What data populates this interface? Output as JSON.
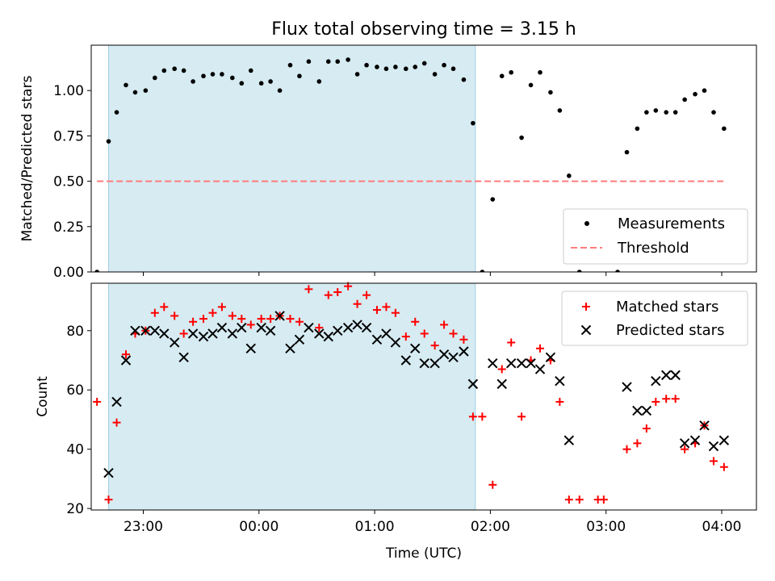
{
  "chart_data": [
    {
      "type": "scatter",
      "title": "Flux total observing time = 3.15 h",
      "xlabel": "",
      "ylabel": "Matched/Predicted stars",
      "xlim": [
        -1.45,
        4.3
      ],
      "ylim": [
        0,
        1.25
      ],
      "yticks": [
        0.0,
        0.25,
        0.5,
        0.75,
        1.0
      ],
      "ytick_labels": [
        "0.00",
        "0.25",
        "0.50",
        "0.75",
        "1.00"
      ],
      "shaded_region": [
        -1.3,
        1.87
      ],
      "threshold": {
        "value": 0.5,
        "x_range": [
          -1.4,
          4.03
        ]
      },
      "legend": {
        "position": "lower-right",
        "entries": [
          "Measurements",
          "Threshold"
        ]
      },
      "series": [
        {
          "name": "Measurements",
          "color": "#000000",
          "points": [
            [
              -1.4,
              0.0
            ],
            [
              -1.3,
              0.72
            ],
            [
              -1.23,
              0.88
            ],
            [
              -1.15,
              1.03
            ],
            [
              -1.07,
              0.99
            ],
            [
              -0.98,
              1.0
            ],
            [
              -0.9,
              1.07
            ],
            [
              -0.82,
              1.11
            ],
            [
              -0.73,
              1.12
            ],
            [
              -0.65,
              1.11
            ],
            [
              -0.57,
              1.05
            ],
            [
              -0.48,
              1.08
            ],
            [
              -0.4,
              1.09
            ],
            [
              -0.32,
              1.09
            ],
            [
              -0.23,
              1.07
            ],
            [
              -0.15,
              1.04
            ],
            [
              -0.07,
              1.11
            ],
            [
              0.02,
              1.04
            ],
            [
              0.1,
              1.05
            ],
            [
              0.18,
              1.0
            ],
            [
              0.27,
              1.14
            ],
            [
              0.35,
              1.08
            ],
            [
              0.43,
              1.16
            ],
            [
              0.52,
              1.05
            ],
            [
              0.6,
              1.16
            ],
            [
              0.68,
              1.16
            ],
            [
              0.77,
              1.17
            ],
            [
              0.85,
              1.09
            ],
            [
              0.93,
              1.14
            ],
            [
              1.02,
              1.13
            ],
            [
              1.1,
              1.12
            ],
            [
              1.18,
              1.13
            ],
            [
              1.27,
              1.12
            ],
            [
              1.35,
              1.13
            ],
            [
              1.43,
              1.15
            ],
            [
              1.52,
              1.09
            ],
            [
              1.6,
              1.14
            ],
            [
              1.68,
              1.12
            ],
            [
              1.77,
              1.06
            ],
            [
              1.85,
              0.82
            ],
            [
              1.93,
              0.0
            ],
            [
              2.02,
              0.4
            ],
            [
              2.1,
              1.08
            ],
            [
              2.18,
              1.1
            ],
            [
              2.27,
              0.74
            ],
            [
              2.35,
              1.03
            ],
            [
              2.43,
              1.1
            ],
            [
              2.52,
              0.99
            ],
            [
              2.6,
              0.89
            ],
            [
              2.68,
              0.53
            ],
            [
              2.77,
              0.0
            ],
            [
              2.85,
              -0.02
            ],
            [
              2.93,
              -0.02
            ],
            [
              3.02,
              -0.02
            ],
            [
              3.1,
              0.0
            ],
            [
              3.18,
              0.66
            ],
            [
              3.27,
              0.79
            ],
            [
              3.35,
              0.88
            ],
            [
              3.43,
              0.89
            ],
            [
              3.52,
              0.88
            ],
            [
              3.6,
              0.88
            ],
            [
              3.68,
              0.95
            ],
            [
              3.77,
              0.98
            ],
            [
              3.85,
              1.0
            ],
            [
              3.93,
              0.88
            ],
            [
              4.02,
              0.79
            ]
          ]
        },
        {
          "name": "Threshold",
          "color": "#ff7b7b",
          "values": [
            0.5,
            0.5
          ]
        }
      ]
    },
    {
      "type": "scatter",
      "title": "",
      "xlabel": "Time (UTC)",
      "ylabel": "Count",
      "xlim": [
        -1.45,
        4.3
      ],
      "ylim": [
        19.5,
        96
      ],
      "yticks": [
        20,
        40,
        60,
        80
      ],
      "ytick_labels": [
        "20",
        "40",
        "60",
        "80"
      ],
      "xticks": [
        -1,
        0,
        1,
        2,
        3,
        4
      ],
      "xtick_labels": [
        "23:00",
        "00:00",
        "01:00",
        "02:00",
        "03:00",
        "04:00"
      ],
      "shaded_region": [
        -1.3,
        1.87
      ],
      "legend": {
        "position": "top-right",
        "entries": [
          "Matched stars",
          "Predicted stars"
        ]
      },
      "series": [
        {
          "name": "Matched stars",
          "color": "#ff0000",
          "points": [
            [
              -1.4,
              56
            ],
            [
              -1.3,
              23
            ],
            [
              -1.23,
              49
            ],
            [
              -1.15,
              72
            ],
            [
              -1.07,
              79
            ],
            [
              -0.98,
              80
            ],
            [
              -0.9,
              86
            ],
            [
              -0.82,
              88
            ],
            [
              -0.73,
              85
            ],
            [
              -0.65,
              79
            ],
            [
              -0.57,
              83
            ],
            [
              -0.48,
              84
            ],
            [
              -0.4,
              86
            ],
            [
              -0.32,
              88
            ],
            [
              -0.23,
              85
            ],
            [
              -0.15,
              84
            ],
            [
              -0.07,
              82
            ],
            [
              0.02,
              84
            ],
            [
              0.1,
              84
            ],
            [
              0.18,
              85
            ],
            [
              0.27,
              84
            ],
            [
              0.35,
              83
            ],
            [
              0.43,
              94
            ],
            [
              0.52,
              81
            ],
            [
              0.6,
              92
            ],
            [
              0.68,
              93
            ],
            [
              0.77,
              95
            ],
            [
              0.85,
              89
            ],
            [
              0.93,
              92
            ],
            [
              1.02,
              87
            ],
            [
              1.1,
              88
            ],
            [
              1.18,
              86
            ],
            [
              1.27,
              78
            ],
            [
              1.35,
              83
            ],
            [
              1.43,
              79
            ],
            [
              1.52,
              75
            ],
            [
              1.6,
              82
            ],
            [
              1.68,
              79
            ],
            [
              1.77,
              77
            ],
            [
              1.85,
              51
            ],
            [
              1.93,
              51
            ],
            [
              2.02,
              28
            ],
            [
              2.1,
              67
            ],
            [
              2.18,
              76
            ],
            [
              2.27,
              51
            ],
            [
              2.35,
              70
            ],
            [
              2.43,
              74
            ],
            [
              2.52,
              70
            ],
            [
              2.6,
              56
            ],
            [
              2.68,
              23
            ],
            [
              2.77,
              23
            ],
            [
              2.93,
              23
            ],
            [
              2.98,
              23
            ],
            [
              3.18,
              40
            ],
            [
              3.27,
              42
            ],
            [
              3.35,
              47
            ],
            [
              3.43,
              56
            ],
            [
              3.52,
              57
            ],
            [
              3.6,
              57
            ],
            [
              3.68,
              40
            ],
            [
              3.77,
              42
            ],
            [
              3.85,
              48
            ],
            [
              3.93,
              36
            ],
            [
              4.02,
              34
            ]
          ]
        },
        {
          "name": "Predicted stars",
          "color": "#000000",
          "points": [
            [
              -1.3,
              32
            ],
            [
              -1.23,
              56
            ],
            [
              -1.15,
              70
            ],
            [
              -1.07,
              80
            ],
            [
              -0.98,
              80
            ],
            [
              -0.9,
              80
            ],
            [
              -0.82,
              79
            ],
            [
              -0.73,
              76
            ],
            [
              -0.65,
              71
            ],
            [
              -0.57,
              79
            ],
            [
              -0.48,
              78
            ],
            [
              -0.4,
              79
            ],
            [
              -0.32,
              81
            ],
            [
              -0.23,
              79
            ],
            [
              -0.15,
              81
            ],
            [
              -0.07,
              74
            ],
            [
              0.02,
              81
            ],
            [
              0.1,
              80
            ],
            [
              0.18,
              85
            ],
            [
              0.27,
              74
            ],
            [
              0.35,
              77
            ],
            [
              0.43,
              81
            ],
            [
              0.52,
              79
            ],
            [
              0.6,
              78
            ],
            [
              0.68,
              80
            ],
            [
              0.77,
              81
            ],
            [
              0.85,
              82
            ],
            [
              0.93,
              81
            ],
            [
              1.02,
              77
            ],
            [
              1.1,
              79
            ],
            [
              1.18,
              76
            ],
            [
              1.27,
              70
            ],
            [
              1.35,
              74
            ],
            [
              1.43,
              69
            ],
            [
              1.52,
              69
            ],
            [
              1.6,
              72
            ],
            [
              1.68,
              71
            ],
            [
              1.77,
              73
            ],
            [
              1.85,
              62
            ],
            [
              2.02,
              69
            ],
            [
              2.1,
              62
            ],
            [
              2.18,
              69
            ],
            [
              2.27,
              69
            ],
            [
              2.35,
              69
            ],
            [
              2.43,
              67
            ],
            [
              2.52,
              71
            ],
            [
              2.6,
              63
            ],
            [
              2.68,
              43
            ],
            [
              3.18,
              61
            ],
            [
              3.27,
              53
            ],
            [
              3.35,
              53
            ],
            [
              3.43,
              63
            ],
            [
              3.52,
              65
            ],
            [
              3.6,
              65
            ],
            [
              3.68,
              42
            ],
            [
              3.77,
              43
            ],
            [
              3.85,
              48
            ],
            [
              3.93,
              41
            ],
            [
              4.02,
              43
            ]
          ]
        }
      ]
    }
  ]
}
